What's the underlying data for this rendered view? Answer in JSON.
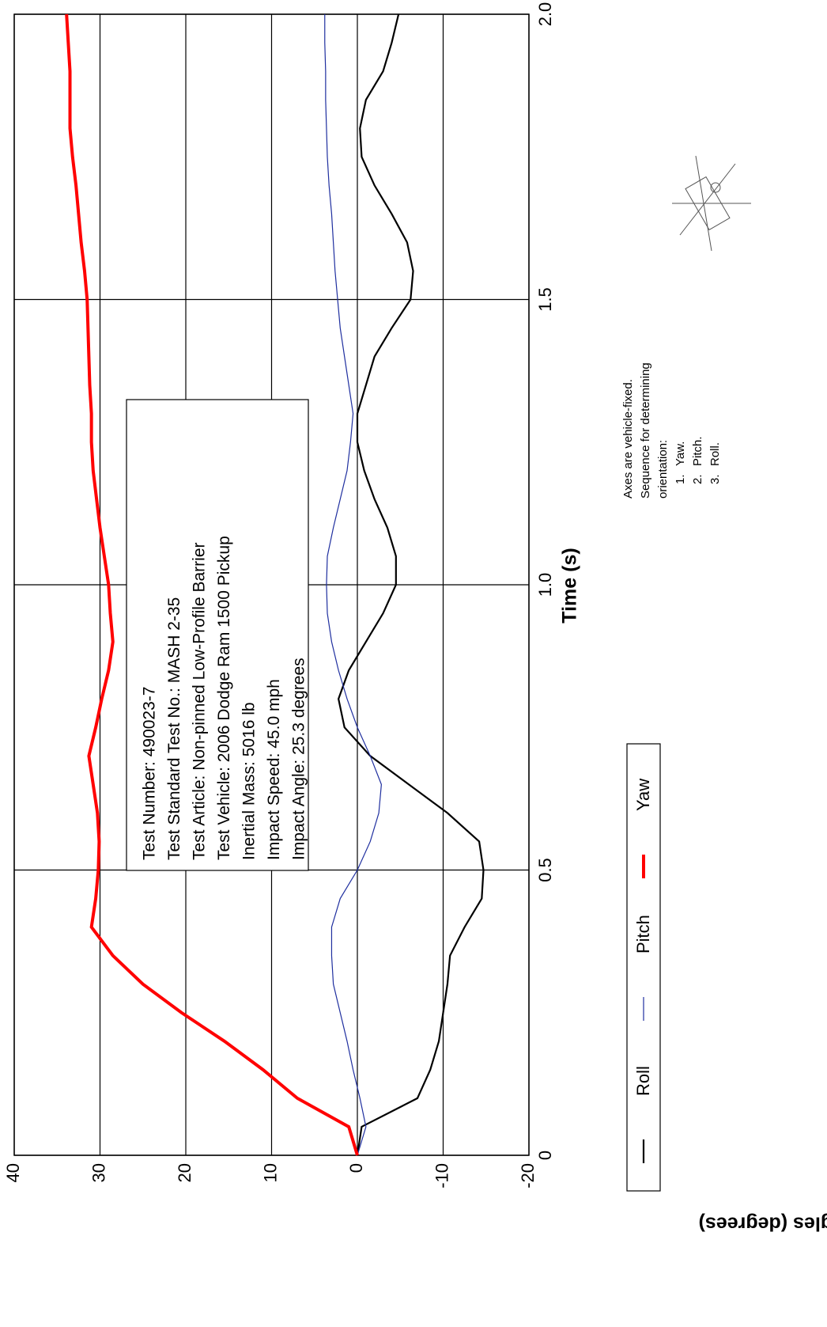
{
  "chart_data": {
    "type": "line",
    "x_label": "Time (s)",
    "y_label": "Angles (degrees)",
    "x": [
      0,
      0.05,
      0.1,
      0.15,
      0.2,
      0.25,
      0.3,
      0.35,
      0.4,
      0.45,
      0.5,
      0.55,
      0.6,
      0.65,
      0.7,
      0.75,
      0.8,
      0.85,
      0.9,
      0.95,
      1.0,
      1.05,
      1.1,
      1.15,
      1.2,
      1.25,
      1.3,
      1.35,
      1.4,
      1.45,
      1.5,
      1.55,
      1.6,
      1.65,
      1.7,
      1.75,
      1.8,
      1.85,
      1.9,
      1.95,
      2.0
    ],
    "series": [
      {
        "name": "Roll",
        "color": "#000000",
        "values": [
          0,
          -0.5,
          -7,
          -8.5,
          -9.5,
          -10,
          -10.5,
          -10.8,
          -12.5,
          -14.5,
          -14.7,
          -14.2,
          -10.5,
          -6,
          -1.5,
          1.5,
          2.2,
          1,
          -1,
          -3,
          -4.5,
          -4.5,
          -3.5,
          -2,
          -0.8,
          0,
          0,
          -1,
          -2,
          -4,
          -6.2,
          -6.5,
          -5.8,
          -4,
          -2,
          -0.5,
          -0.3,
          -1,
          -3,
          -4,
          -4.8
        ]
      },
      {
        "name": "Pitch",
        "color": "#1f2f9f",
        "values": [
          0,
          -1,
          -0.3,
          0.5,
          1.2,
          2,
          2.8,
          3,
          3,
          2,
          0,
          -1.5,
          -2.5,
          -2.8,
          -1.5,
          0,
          1.2,
          2.2,
          3,
          3.5,
          3.6,
          3.5,
          2.8,
          2,
          1.2,
          0.8,
          0.5,
          1,
          1.5,
          2,
          2.3,
          2.6,
          2.8,
          3,
          3.3,
          3.5,
          3.6,
          3.7,
          3.7,
          3.8,
          3.8
        ]
      },
      {
        "name": "Yaw",
        "color": "#ff0000",
        "values": [
          0,
          1,
          7,
          11,
          15.5,
          20.5,
          25,
          28.5,
          31,
          30.5,
          30.2,
          30.1,
          30.3,
          30.8,
          31.3,
          30.5,
          29.8,
          29,
          28.5,
          28.8,
          29,
          29.5,
          30,
          30.4,
          30.8,
          31,
          31,
          31.2,
          31.3,
          31.4,
          31.5,
          31.8,
          32.2,
          32.5,
          32.8,
          33.2,
          33.5,
          33.5,
          33.5,
          33.7,
          33.9
        ]
      }
    ],
    "xlim": [
      0,
      2
    ],
    "xticks": [
      0,
      0.5,
      {
        "value": 1,
        "label": "1.0"
      },
      1.5,
      {
        "value": 2,
        "label": "2.0"
      }
    ],
    "ylim": [
      -20,
      40
    ],
    "yticks": [
      -20,
      -10,
      0,
      10,
      20,
      30,
      40
    ],
    "grid": true,
    "annotation": [
      "Test Number:  490023-7",
      "Test Standard Test No.:  MASH 2-35",
      "Test Article:  Non-pinned Low-Profile Barrier",
      "Test Vehicle:  2006 Dodge Ram 1500 Pickup",
      "Inertial Mass:  5016 lb",
      "Impact Speed:  45.0 mph",
      "Impact Angle:  25.3 degrees"
    ],
    "note": {
      "lines": [
        "Axes are vehicle-fixed.",
        "Sequence for determining",
        "orientation:"
      ],
      "items": [
        {
          "num": "1.",
          "text": "Yaw."
        },
        {
          "num": "2.",
          "text": "Pitch."
        },
        {
          "num": "3.",
          "text": "Roll."
        }
      ]
    }
  }
}
